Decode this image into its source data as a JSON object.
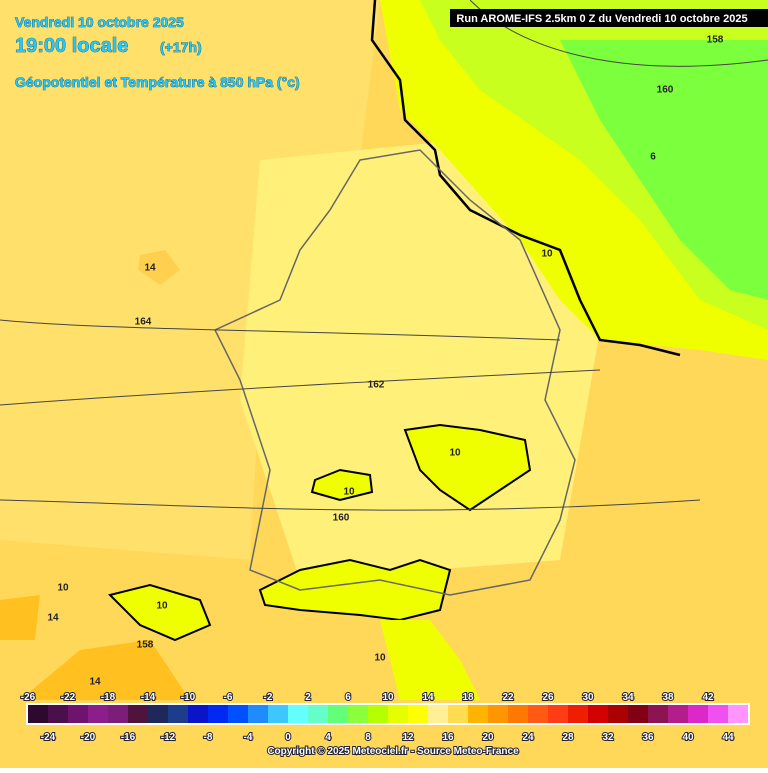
{
  "header": {
    "date": "Vendredi 10 octobre 2025",
    "time": "19:00 locale",
    "lead": "(+17h)",
    "parameter": "Géopotentiel et Température à 850 hPa (°c)",
    "run": "Run AROME-IFS 2.5km 0 Z du Vendredi 10 octobre 2025"
  },
  "map_labels": [
    14,
    164,
    162,
    160,
    10,
    10,
    10,
    160,
    158,
    6,
    10,
    14,
    10,
    158,
    14,
    10
  ],
  "colorbar": {
    "top_labels": [
      -26,
      -22,
      -18,
      -14,
      -10,
      -6,
      -2,
      2,
      6,
      10,
      14,
      18,
      22,
      26,
      30,
      34,
      38,
      42
    ],
    "bottom_labels": [
      -24,
      -20,
      -16,
      -12,
      -8,
      -4,
      0,
      4,
      8,
      12,
      16,
      20,
      24,
      28,
      32,
      36,
      40,
      44
    ],
    "colors": [
      "#2d0a2d",
      "#4b0f4b",
      "#6e146e",
      "#8c1e8c",
      "#7a1e7a",
      "#50143c",
      "#1e285a",
      "#1e3c8c",
      "#0a14c8",
      "#0028f0",
      "#0050ff",
      "#1e8cff",
      "#3cc8ff",
      "#64ffff",
      "#64ffc8",
      "#64ff78",
      "#8cff3c",
      "#b4ff00",
      "#e6ff00",
      "#ffff00",
      "#fff096",
      "#ffdc50",
      "#ffb400",
      "#ff9600",
      "#ff7800",
      "#ff5a14",
      "#ff3c14",
      "#f01e00",
      "#d20000",
      "#aa0000",
      "#820014",
      "#8c1450",
      "#b41e8c",
      "#dc28c8",
      "#f050f0",
      "#ff96ff"
    ]
  },
  "footer": {
    "copyright": "Copyright © 2025 Meteociel.fr - Source Meteo-France"
  }
}
